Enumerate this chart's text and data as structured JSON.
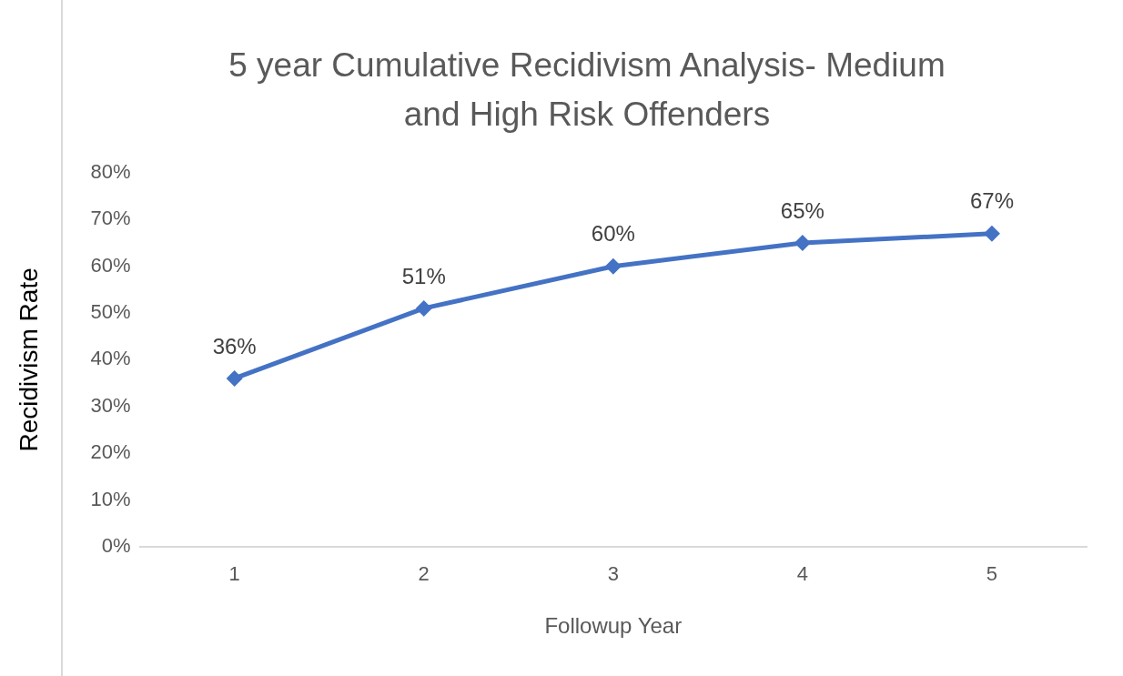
{
  "chart_data": {
    "type": "line",
    "title": "5 year Cumulative Recidivism Analysis- Medium and High Risk Offenders",
    "xlabel": "Followup Year",
    "ylabel": "Recidivism Rate",
    "categories": [
      "1",
      "2",
      "3",
      "4",
      "5"
    ],
    "series": [
      {
        "color": "#4472c4",
        "values": [
          36,
          51,
          60,
          65,
          67
        ],
        "value_labels": [
          "36%",
          "51%",
          "60%",
          "65%",
          "67%"
        ]
      }
    ],
    "ylim": [
      0,
      80
    ],
    "yticks": [
      {
        "value": 0,
        "label": "0%"
      },
      {
        "value": 10,
        "label": "10%"
      },
      {
        "value": 20,
        "label": "20%"
      },
      {
        "value": 30,
        "label": "30%"
      },
      {
        "value": 40,
        "label": "40%"
      },
      {
        "value": 50,
        "label": "50%"
      },
      {
        "value": 60,
        "label": "60%"
      },
      {
        "value": 70,
        "label": "70%"
      },
      {
        "value": 80,
        "label": "80%"
      }
    ],
    "grid": false,
    "legend": false,
    "marker": "diamond",
    "line_style": "solid"
  }
}
